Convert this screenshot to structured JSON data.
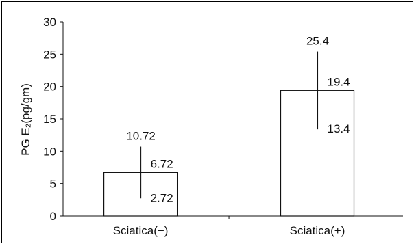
{
  "chart_data": {
    "type": "bar",
    "title": "",
    "xlabel": "",
    "ylabel": "PG E₂(pg/gm)",
    "ylim": [
      0,
      30
    ],
    "yticks": [
      0,
      5,
      10,
      15,
      20,
      25,
      30
    ],
    "grid": false,
    "legend": "none",
    "categories": [
      "Sciatica(−)",
      "Sciatica(+)"
    ],
    "values": [
      6.72,
      19.4
    ],
    "error_upper": [
      10.72,
      25.4
    ],
    "error_lower": [
      2.72,
      13.4
    ],
    "data_labels": {
      "mean": [
        "6.72",
        "19.4"
      ],
      "upper": [
        "10.72",
        "25.4"
      ],
      "lower": [
        "2.72",
        "13.4"
      ]
    },
    "colors": {
      "bar_fill": "#ffffff",
      "stroke": "#111111"
    }
  }
}
